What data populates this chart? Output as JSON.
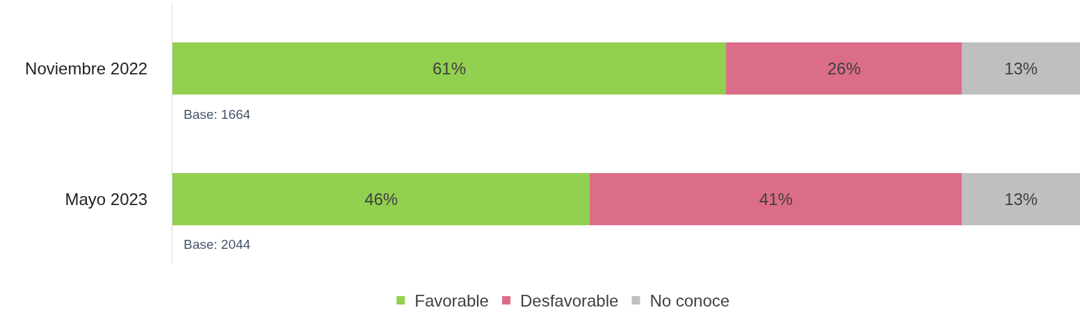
{
  "chart_data": {
    "type": "bar",
    "orientation": "horizontal",
    "stacked": true,
    "categories": [
      "Noviembre 2022",
      "Mayo 2023"
    ],
    "series": [
      {
        "name": "Favorable",
        "color": "#92d050",
        "values": [
          61,
          46
        ],
        "value_labels": [
          "61%",
          "46%"
        ]
      },
      {
        "name": "Desfavorable",
        "color": "#dc6d89",
        "values": [
          26,
          41
        ],
        "value_labels": [
          "26%",
          "41%"
        ]
      },
      {
        "name": "No conoce",
        "color": "#bfbfbf",
        "values": [
          13,
          13
        ],
        "value_labels": [
          "13%",
          "13%"
        ]
      }
    ],
    "xlim": [
      0,
      100
    ],
    "tick_labels": "y",
    "legend": "bottom",
    "annotations": [
      "Base: 1664",
      "Base: 2044"
    ]
  }
}
